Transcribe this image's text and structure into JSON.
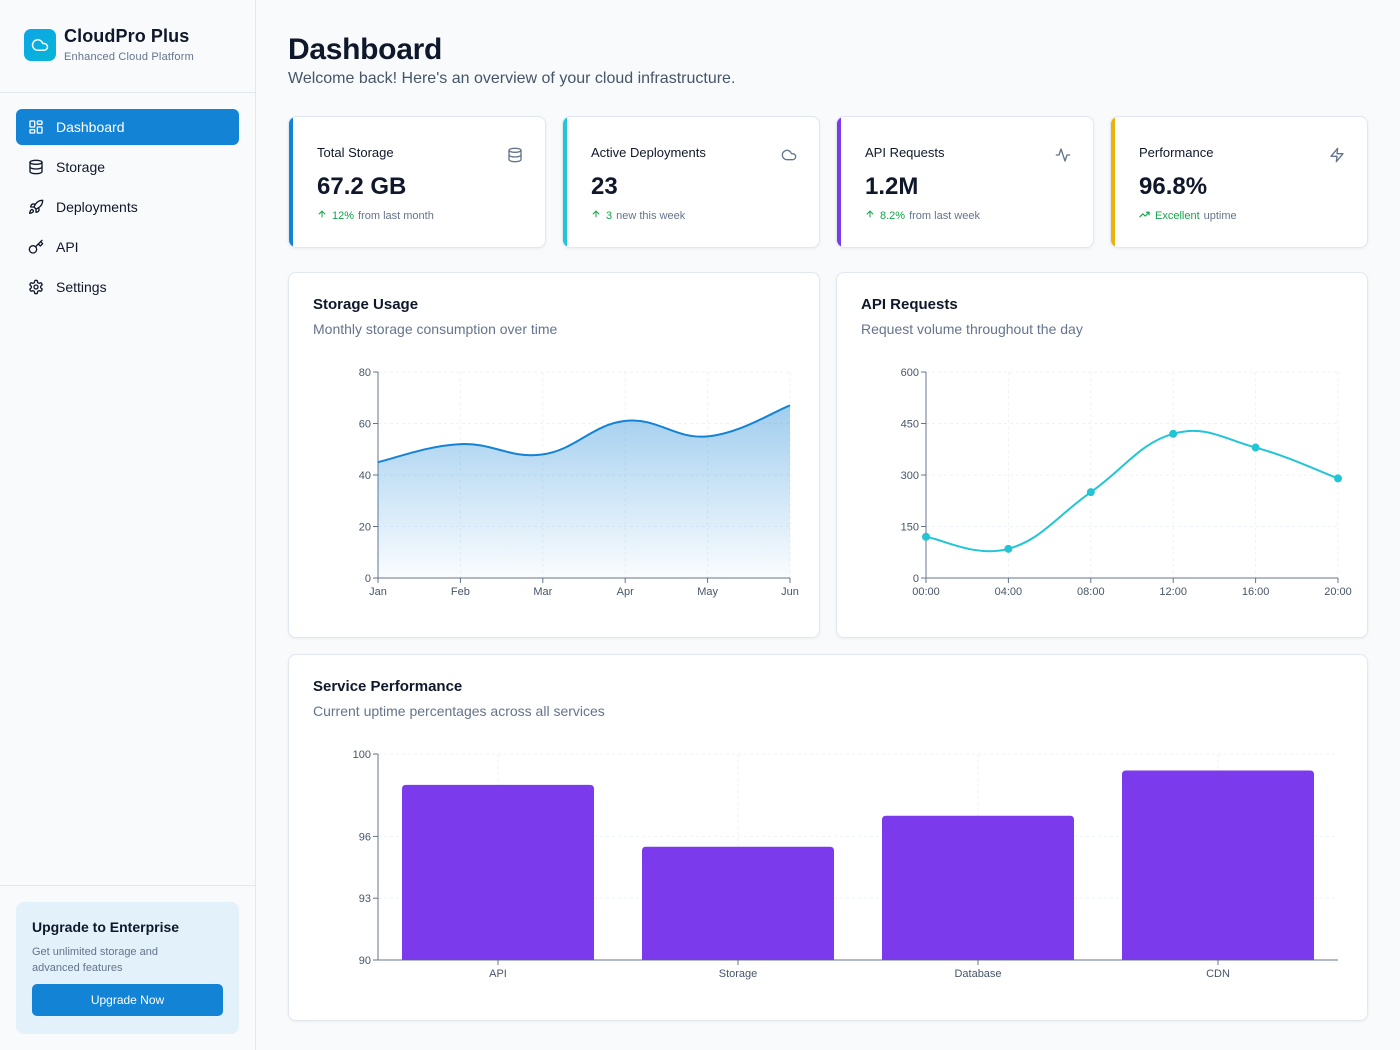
{
  "sidebar": {
    "brand": {
      "name": "CloudPro Plus",
      "subtitle": "Enhanced Cloud Platform",
      "icon": "cloud-icon"
    },
    "nav": [
      {
        "label": "Dashboard",
        "icon": "grid-icon",
        "active": true
      },
      {
        "label": "Storage",
        "icon": "database-icon",
        "active": false
      },
      {
        "label": "Deployments",
        "icon": "rocket-icon",
        "active": false
      },
      {
        "label": "API",
        "icon": "key-icon",
        "active": false
      },
      {
        "label": "Settings",
        "icon": "gear-icon",
        "active": false
      }
    ],
    "upgrade": {
      "title": "Upgrade to Enterprise",
      "text": "Get unlimited storage and advanced features",
      "button": "Upgrade Now"
    }
  },
  "header": {
    "title": "Dashboard",
    "subtitle": "Welcome back! Here's an overview of your cloud infrastructure."
  },
  "stats": [
    {
      "title": "Total Storage",
      "value": "67.2 GB",
      "change": "12%",
      "change_suffix": "from last month",
      "icon": "database-icon",
      "accent": "#1383d6"
    },
    {
      "title": "Active Deployments",
      "value": "23",
      "change": "3",
      "change_suffix": "new this week",
      "icon": "cloud-icon",
      "accent": "#22c5d6"
    },
    {
      "title": "API Requests",
      "value": "1.2M",
      "change": "8.2%",
      "change_suffix": "from last week",
      "icon": "activity-icon",
      "accent": "#7c3aed"
    },
    {
      "title": "Performance",
      "value": "96.8%",
      "change": "Excellent",
      "change_suffix": "uptime",
      "icon": "lightning-icon",
      "accent": "#eab308"
    }
  ],
  "colors": {
    "primary": "#1383d6",
    "cyan": "#22c5d6",
    "purple": "#7c3aed",
    "yellow": "#eab308",
    "positive": "#16a34a"
  },
  "storage_card": {
    "title": "Storage Usage",
    "subtitle": "Monthly storage consumption over time"
  },
  "api_card": {
    "title": "API Requests",
    "subtitle": "Request volume throughout the day"
  },
  "perf_card": {
    "title": "Service Performance",
    "subtitle": "Current uptime percentages across all services"
  },
  "chart_data": [
    {
      "type": "area",
      "title": "Storage Usage",
      "categories": [
        "Jan",
        "Feb",
        "Mar",
        "Apr",
        "May",
        "Jun"
      ],
      "values": [
        45,
        52,
        48,
        61,
        55,
        67
      ],
      "ylim": [
        0,
        80
      ],
      "yticks": [
        0,
        20,
        40,
        60,
        80
      ],
      "grid": true,
      "color": "#1383d6"
    },
    {
      "type": "line",
      "title": "API Requests",
      "categories": [
        "00:00",
        "04:00",
        "08:00",
        "12:00",
        "16:00",
        "20:00"
      ],
      "values": [
        120,
        85,
        250,
        420,
        380,
        290
      ],
      "ylim": [
        0,
        600
      ],
      "yticks": [
        0,
        150,
        300,
        450,
        600
      ],
      "grid": true,
      "color": "#22c5d6"
    },
    {
      "type": "bar",
      "title": "Service Performance",
      "categories": [
        "API",
        "Storage",
        "Database",
        "CDN"
      ],
      "values": [
        98.5,
        95.5,
        97.0,
        99.2
      ],
      "ylim": [
        90,
        100
      ],
      "yticks": [
        90,
        93,
        96,
        100
      ],
      "grid": true,
      "color": "#7c3aed"
    }
  ]
}
